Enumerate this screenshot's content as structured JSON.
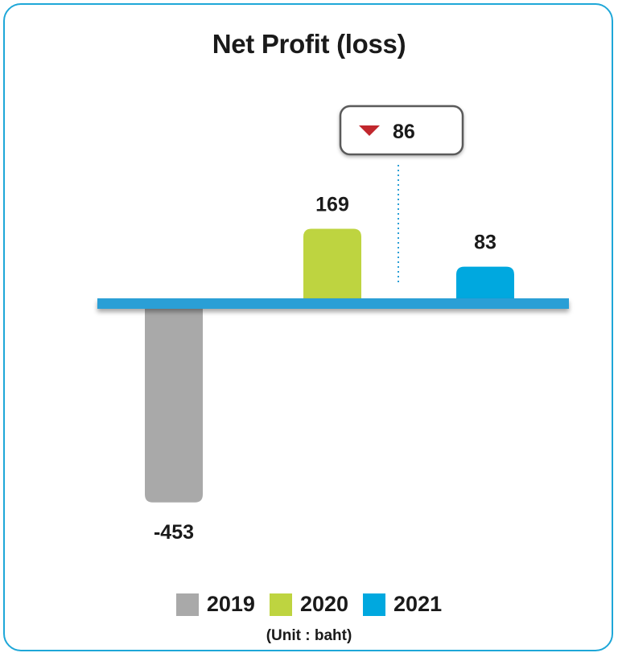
{
  "chart_data": {
    "type": "bar",
    "title": "Net Profit (loss)",
    "categories": [
      "2019",
      "2020",
      "2021"
    ],
    "values": [
      -453,
      169,
      83
    ],
    "value_labels": [
      "-453",
      "169",
      "83"
    ],
    "colors": [
      "#a9a9a9",
      "#bed440",
      "#00a8df"
    ],
    "axis_color": "#2b9fd6",
    "legend": [
      "2019",
      "2020",
      "2021"
    ],
    "legend_position": "bottom",
    "unit_note": "(Unit : baht)",
    "change_callout": {
      "direction": "down",
      "value": "86",
      "color": "#c1272d"
    },
    "grid": false
  }
}
